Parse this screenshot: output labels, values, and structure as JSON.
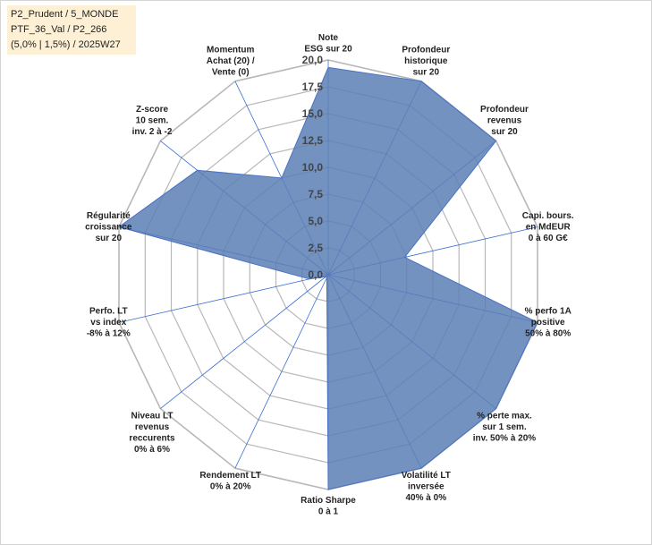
{
  "info_box": {
    "line1": "P2_Prudent / 5_MONDE",
    "line2": "PTF_36_Val / P2_266",
    "line3": "(5,0% | 1,5%) / 2025W27"
  },
  "colors": {
    "fill": "#5b7fb5",
    "stroke": "#4a72c4",
    "grid": "#b8b8b8",
    "spoke": "#3b6fd6"
  },
  "chart_data": {
    "type": "radar",
    "title": "",
    "r_min": 0,
    "r_max": 20,
    "ticks": [
      "0,0",
      "2,5",
      "5,0",
      "7,5",
      "10,0",
      "12,5",
      "15,0",
      "17,5",
      "20,0"
    ],
    "tick_values": [
      0,
      2.5,
      5,
      7.5,
      10,
      12.5,
      15,
      17.5,
      20
    ],
    "axes": [
      {
        "lines": [
          "Note",
          "ESG sur 20"
        ],
        "value": 19.3
      },
      {
        "lines": [
          "Profondeur",
          "historique",
          "sur 20"
        ],
        "value": 20.0
      },
      {
        "lines": [
          "Profondeur",
          "revenus",
          "sur 20"
        ],
        "value": 20.0
      },
      {
        "lines": [
          "Capi. bours.",
          "en MdEUR",
          "0 à 60 G€"
        ],
        "value": 7.3
      },
      {
        "lines": [
          "% perfo 1A",
          "positive",
          "50% à 80%"
        ],
        "value": 20.0
      },
      {
        "lines": [
          "% perte max.",
          "sur 1 sem.",
          "inv. 50% à 20%"
        ],
        "value": 20.0
      },
      {
        "lines": [
          "Volatilité LT",
          "inversée",
          "40% à 0%"
        ],
        "value": 20.0
      },
      {
        "lines": [
          "Ratio Sharpe",
          "0 à 1"
        ],
        "value": 20.0
      },
      {
        "lines": [
          "Rendement LT",
          "0% à 20%"
        ],
        "value": 0.3
      },
      {
        "lines": [
          "Niveau LT",
          "revenus",
          "reccurents",
          "0% à 6%"
        ],
        "value": 0.3
      },
      {
        "lines": [
          "Perfo. LT",
          "vs index",
          "-8% à 12%"
        ],
        "value": 1.8
      },
      {
        "lines": [
          "Régularité",
          "croissance",
          "sur 20"
        ],
        "value": 20.0
      },
      {
        "lines": [
          "Z-score",
          "10 sem.",
          "inv. 2 à -2"
        ],
        "value": 15.6
      },
      {
        "lines": [
          "Momentum",
          "Achat (20) /",
          "Vente (0)"
        ],
        "value": 10.0
      }
    ]
  }
}
